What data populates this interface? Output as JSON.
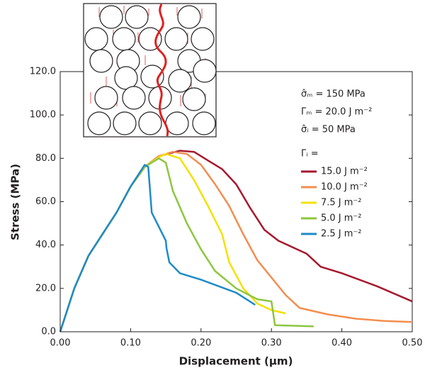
{
  "chart_data": {
    "type": "line",
    "xlabel": "Displacement (µm)",
    "ylabel": "Stress (MPa)",
    "xlim": [
      0,
      0.5
    ],
    "ylim": [
      0,
      120
    ],
    "xticks": [
      {
        "value": 0,
        "label": "0.00"
      },
      {
        "value": 0.1,
        "label": "0.10"
      },
      {
        "value": 0.2,
        "label": "0.20"
      },
      {
        "value": 0.3,
        "label": "0.30"
      },
      {
        "value": 0.4,
        "label": "0.40"
      },
      {
        "value": 0.5,
        "label": "0.50"
      }
    ],
    "yticks": [
      {
        "value": 0,
        "label": "0.0"
      },
      {
        "value": 20,
        "label": "20.0"
      },
      {
        "value": 40,
        "label": "40.0"
      },
      {
        "value": 60,
        "label": "60.0"
      },
      {
        "value": 80,
        "label": "80.0"
      },
      {
        "value": 100,
        "label": "100.0"
      },
      {
        "value": 120,
        "label": "120.0"
      }
    ],
    "annotations": [
      "σ̂ₘ = 150 MPa",
      "Γₘ = 20.0 J m⁻²",
      "σ̂ᵢ = 50 MPa"
    ],
    "legend_title": "Γᵢ =",
    "series": [
      {
        "name": "15.0 J m⁻²",
        "color": "#a6192e",
        "x": [
          0,
          0.02,
          0.04,
          0.06,
          0.08,
          0.1,
          0.12,
          0.14,
          0.17,
          0.19,
          0.21,
          0.23,
          0.25,
          0.27,
          0.29,
          0.31,
          0.33,
          0.35,
          0.37,
          0.4,
          0.45,
          0.5
        ],
        "values": [
          0,
          20,
          35,
          45,
          55,
          67,
          76,
          81,
          83.5,
          83,
          79,
          75,
          68,
          57,
          47,
          42,
          39,
          36,
          30,
          27,
          21,
          14
        ]
      },
      {
        "name": "10.0 J m⁻²",
        "color": "#f28e4f",
        "x": [
          0,
          0.02,
          0.04,
          0.06,
          0.08,
          0.1,
          0.12,
          0.14,
          0.16,
          0.18,
          0.2,
          0.22,
          0.24,
          0.26,
          0.28,
          0.3,
          0.32,
          0.34,
          0.38,
          0.42,
          0.46,
          0.5
        ],
        "values": [
          0,
          20,
          35,
          45,
          55,
          67,
          76,
          81,
          83,
          82,
          77,
          68,
          58,
          45,
          33,
          25,
          17,
          11,
          8,
          6,
          5,
          4.5
        ]
      },
      {
        "name": "7.5 J m⁻²",
        "color": "#f5e000",
        "x": [
          0,
          0.02,
          0.04,
          0.06,
          0.08,
          0.1,
          0.12,
          0.14,
          0.15,
          0.17,
          0.19,
          0.21,
          0.23,
          0.24,
          0.26,
          0.28,
          0.3,
          0.32
        ],
        "values": [
          0,
          20,
          35,
          45,
          55,
          67,
          76,
          80.5,
          82,
          80,
          70,
          58,
          45,
          32,
          20,
          13,
          10,
          8.5
        ]
      },
      {
        "name": "5.0 J m⁻²",
        "color": "#8dc63f",
        "x": [
          0,
          0.02,
          0.04,
          0.06,
          0.08,
          0.1,
          0.12,
          0.14,
          0.15,
          0.16,
          0.18,
          0.2,
          0.22,
          0.25,
          0.28,
          0.3,
          0.305,
          0.36
        ],
        "values": [
          0,
          20,
          35,
          45,
          55,
          67,
          76,
          80,
          78,
          65,
          50,
          38,
          28,
          20,
          15,
          14,
          3,
          2.5
        ]
      },
      {
        "name": "2.5 J m⁻²",
        "color": "#1f8ac8",
        "x": [
          0,
          0.02,
          0.04,
          0.06,
          0.08,
          0.1,
          0.12,
          0.125,
          0.13,
          0.15,
          0.151,
          0.155,
          0.17,
          0.2,
          0.25,
          0.277
        ],
        "values": [
          0,
          20,
          35,
          45,
          55,
          67,
          77,
          76,
          55,
          42,
          38.5,
          32,
          27,
          24,
          18,
          12.4
        ]
      }
    ]
  }
}
